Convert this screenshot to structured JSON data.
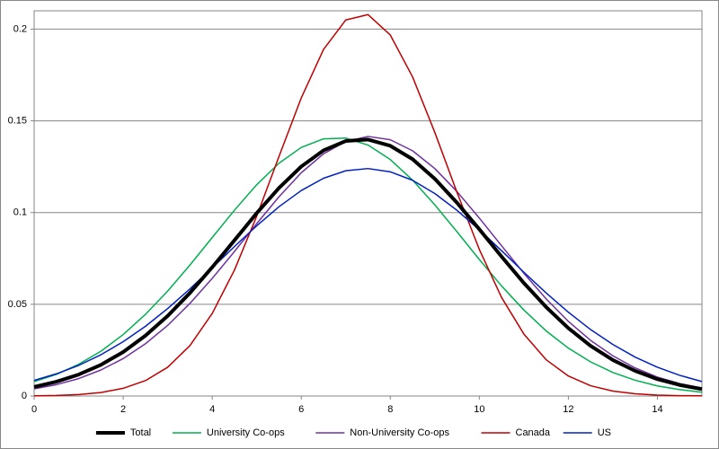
{
  "chart_data": {
    "type": "line",
    "x": [
      0,
      0.5,
      1,
      1.5,
      2,
      2.5,
      3,
      3.5,
      4,
      4.5,
      5,
      5.5,
      6,
      6.5,
      7,
      7.5,
      8,
      8.5,
      9,
      9.5,
      10,
      10.5,
      11,
      11.5,
      12,
      12.5,
      13,
      13.5,
      14,
      14.5,
      15
    ],
    "series": [
      {
        "name": "Total",
        "color": "#000000",
        "line_width": 4,
        "values": [
          0.005,
          0.0078,
          0.0117,
          0.017,
          0.024,
          0.0329,
          0.0437,
          0.0562,
          0.0702,
          0.0849,
          0.0997,
          0.1134,
          0.1251,
          0.1339,
          0.139,
          0.1398,
          0.1364,
          0.1291,
          0.1184,
          0.1053,
          0.0909,
          0.076,
          0.0616,
          0.0485,
          0.037,
          0.0273,
          0.0196,
          0.0137,
          0.0092,
          0.006,
          0.0038
        ]
      },
      {
        "name": "University Co-ops",
        "color": "#00b050",
        "values": [
          0.0079,
          0.0118,
          0.0173,
          0.0244,
          0.0335,
          0.0445,
          0.0572,
          0.0714,
          0.0864,
          0.1013,
          0.1152,
          0.1269,
          0.1355,
          0.1402,
          0.1406,
          0.1368,
          0.1289,
          0.1177,
          0.1042,
          0.0895,
          0.0744,
          0.06,
          0.0469,
          0.0355,
          0.0261,
          0.0186,
          0.0128,
          0.0086,
          0.0055,
          0.0035,
          0.0021
        ]
      },
      {
        "name": "Non-University Co-ops",
        "color": "#7030a0",
        "values": [
          0.0039,
          0.0062,
          0.0095,
          0.0142,
          0.0204,
          0.0285,
          0.0385,
          0.0505,
          0.0641,
          0.0788,
          0.094,
          0.1086,
          0.1217,
          0.132,
          0.1388,
          0.1415,
          0.1397,
          0.1337,
          0.124,
          0.1114,
          0.097,
          0.0819,
          0.0669,
          0.053,
          0.0407,
          0.0303,
          0.0219,
          0.0153,
          0.0103,
          0.0068,
          0.0043
        ]
      },
      {
        "name": "Canada",
        "color": "#c00000",
        "values": [
          0.0001,
          0.0003,
          0.0008,
          0.0019,
          0.0042,
          0.0084,
          0.0157,
          0.0275,
          0.045,
          0.0687,
          0.0981,
          0.1306,
          0.1625,
          0.1889,
          0.205,
          0.2079,
          0.1968,
          0.174,
          0.1437,
          0.1109,
          0.0799,
          0.0537,
          0.0338,
          0.0198,
          0.0109,
          0.0056,
          0.0027,
          0.0012,
          0.0005,
          0.0002,
          0.0001
        ]
      },
      {
        "name": "US",
        "color": "#0020c0",
        "values": [
          0.0085,
          0.0121,
          0.0167,
          0.0225,
          0.0296,
          0.038,
          0.0477,
          0.0584,
          0.0699,
          0.0815,
          0.0928,
          0.1032,
          0.112,
          0.1187,
          0.1228,
          0.124,
          0.1222,
          0.1176,
          0.1104,
          0.1012,
          0.0906,
          0.0792,
          0.0675,
          0.0562,
          0.0457,
          0.0362,
          0.0281,
          0.0212,
          0.0157,
          0.0113,
          0.0079
        ]
      }
    ],
    "xlim": [
      0,
      15
    ],
    "xticks": [
      0,
      2,
      4,
      6,
      8,
      10,
      12,
      14
    ],
    "ylim": [
      0,
      0.21
    ],
    "yticks": [
      0,
      0.05,
      0.1,
      0.15,
      0.2
    ],
    "grid": true,
    "legend": "bottom"
  }
}
